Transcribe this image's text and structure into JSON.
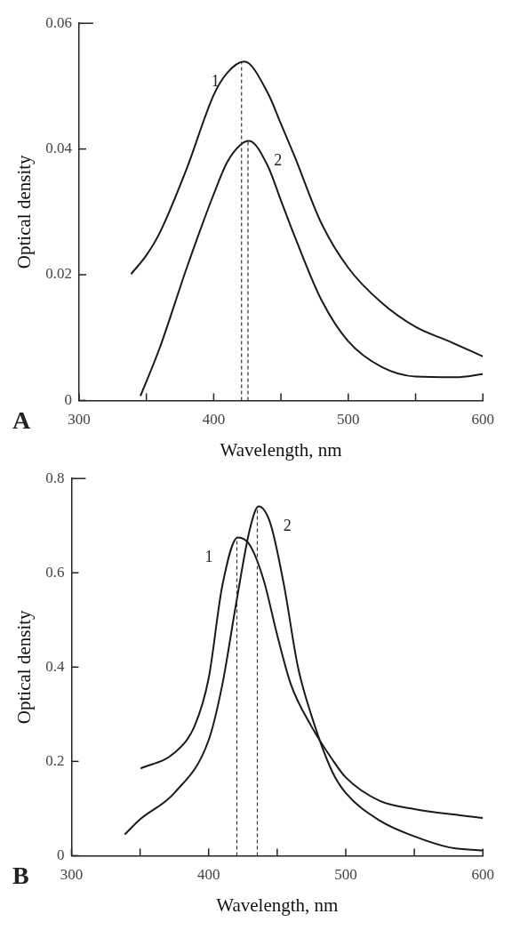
{
  "chart_data": [
    {
      "type": "line",
      "xlabel": "Wavelength, nm",
      "ylabel": "Optical density",
      "annotations": [
        "A"
      ],
      "xlim": [
        300,
        600
      ],
      "xticks": [
        300,
        {
          "value": 350,
          "label": null
        },
        400,
        {
          "value": 450,
          "label": null
        },
        500,
        {
          "value": 550,
          "label": null
        },
        600
      ],
      "ylim": [
        0,
        0.06
      ],
      "yticks": [
        0,
        0.02,
        0.04,
        0.06
      ],
      "grid": false,
      "legend": false,
      "marker": "none",
      "line_style": "solid",
      "ref_lines": [
        {
          "axis": "x",
          "value": 420.7,
          "color": "#333333",
          "line_style": "dashed"
        },
        {
          "axis": "x",
          "value": 425.5,
          "color": "#333333",
          "line_style": "dashed"
        }
      ],
      "series": [
        {
          "name": "1",
          "color": "#1a1a1a",
          "x": [
            338.6,
            350,
            360,
            380,
            400,
            410,
            422.7,
            440,
            450,
            460,
            480,
            500,
            525,
            550,
            575,
            600
          ],
          "values": [
            0.0201,
            0.0231,
            0.0267,
            0.0369,
            0.0486,
            0.0521,
            0.0539,
            0.049,
            0.044,
            0.0389,
            0.0282,
            0.0211,
            0.0155,
            0.0117,
            0.0094,
            0.007
          ]
        },
        {
          "name": "2",
          "color": "#1a1a1a",
          "x": [
            345.6,
            360,
            380,
            400,
            410,
            420,
            426.3,
            440,
            450,
            460,
            480,
            500,
            525,
            550,
            580,
            600
          ],
          "values": [
            0.0007,
            0.0084,
            0.0211,
            0.0328,
            0.0379,
            0.0407,
            0.0413,
            0.0374,
            0.0318,
            0.0262,
            0.016,
            0.0094,
            0.0053,
            0.0038,
            0.0037,
            0.0042
          ]
        }
      ]
    },
    {
      "type": "line",
      "xlabel": "Wavelength, nm",
      "ylabel": "Optical density",
      "annotations": [
        "B"
      ],
      "xlim": [
        300,
        600
      ],
      "xticks": [
        300,
        {
          "value": 350,
          "label": null
        },
        400,
        {
          "value": 450,
          "label": null
        },
        500,
        {
          "value": 550,
          "label": null
        },
        600
      ],
      "ylim": [
        0,
        0.8
      ],
      "yticks": [
        0,
        0.2,
        0.4,
        0.6,
        0.8
      ],
      "grid": false,
      "legend": false,
      "marker": "none",
      "line_style": "solid",
      "ref_lines": [
        {
          "axis": "x",
          "value": 420.6,
          "color": "#333333",
          "line_style": "dashed"
        },
        {
          "axis": "x",
          "value": 435.5,
          "color": "#333333",
          "line_style": "dashed"
        }
      ],
      "series": [
        {
          "name": "1",
          "color": "#1a1a1a",
          "x": [
            350.4,
            375,
            390,
            400,
            410,
            421.3,
            430,
            440,
            450,
            460,
            475,
            490,
            500,
            525,
            550,
            600
          ],
          "values": [
            0.185,
            0.218,
            0.277,
            0.376,
            0.573,
            0.675,
            0.659,
            0.586,
            0.468,
            0.363,
            0.274,
            0.205,
            0.166,
            0.116,
            0.099,
            0.08
          ]
        },
        {
          "name": "2",
          "color": "#1a1a1a",
          "x": [
            338.8,
            350,
            375,
            400,
            410,
            420,
            430,
            436.4,
            445,
            455,
            465,
            475,
            490,
            500,
            525,
            550,
            575,
            600
          ],
          "values": [
            0.045,
            0.077,
            0.133,
            0.245,
            0.363,
            0.534,
            0.692,
            0.741,
            0.705,
            0.573,
            0.402,
            0.297,
            0.179,
            0.133,
            0.074,
            0.041,
            0.018,
            0.011
          ]
        }
      ]
    }
  ]
}
